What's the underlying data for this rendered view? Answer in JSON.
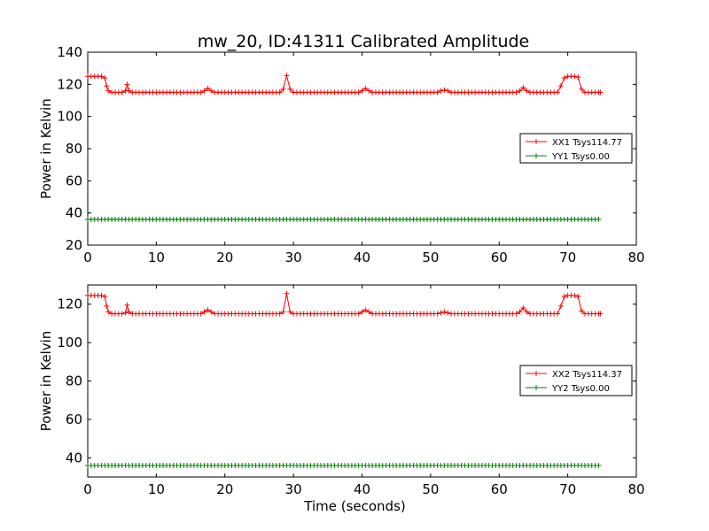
{
  "title": "mw_20, ID:41311 Calibrated Amplitude",
  "colors": {
    "xx": "#ff0000",
    "yy": "#008000",
    "frame": "#000000"
  },
  "chart_data": [
    {
      "type": "line",
      "title": "mw_20, ID:41311 Calibrated Amplitude",
      "xlabel": "",
      "ylabel": "Power in Kelvin",
      "xlim": [
        0,
        80
      ],
      "ylim": [
        20,
        140
      ],
      "xticks": [
        0,
        10,
        20,
        30,
        40,
        50,
        60,
        70,
        80
      ],
      "yticks": [
        20,
        40,
        60,
        80,
        100,
        120,
        140
      ],
      "grid": false,
      "legend_position": "center-right",
      "marker": "+",
      "series": [
        {
          "name": "XX1 Tsys114.77",
          "color": "#ff0000",
          "base": 115,
          "points": [
            [
              0,
              125
            ],
            [
              0.5,
              125
            ],
            [
              1,
              125
            ],
            [
              1.5,
              125
            ],
            [
              2,
              125
            ],
            [
              2.5,
              124
            ],
            [
              2.75,
              119
            ],
            [
              3,
              116
            ],
            [
              3.5,
              115
            ],
            [
              4,
              115
            ],
            [
              4.5,
              115
            ],
            [
              5,
              115
            ],
            [
              5.5,
              116
            ],
            [
              5.75,
              120
            ],
            [
              6,
              116
            ],
            [
              6.5,
              115
            ],
            [
              17,
              116
            ],
            [
              17.5,
              117.5
            ],
            [
              18,
              116
            ],
            [
              28.5,
              117
            ],
            [
              29,
              125.5
            ],
            [
              29.5,
              117
            ],
            [
              30,
              115
            ],
            [
              40,
              116
            ],
            [
              40.5,
              117.5
            ],
            [
              41,
              116
            ],
            [
              51.5,
              116
            ],
            [
              52,
              116.5
            ],
            [
              52.5,
              116
            ],
            [
              63,
              116
            ],
            [
              63.5,
              118
            ],
            [
              64,
              116
            ],
            [
              68.5,
              115
            ],
            [
              69,
              119
            ],
            [
              69.5,
              124
            ],
            [
              70,
              125
            ],
            [
              70.5,
              125
            ],
            [
              71,
              125
            ],
            [
              71.5,
              124.5
            ],
            [
              72,
              117
            ],
            [
              72.5,
              115
            ],
            [
              73,
              115
            ],
            [
              74,
              115
            ],
            [
              74.75,
              115
            ]
          ],
          "x_start": 0,
          "x_end": 74.75,
          "x_step": 0.5
        },
        {
          "name": "YY1 Tsys0.00",
          "color": "#008000",
          "base": 36,
          "points": [],
          "x_start": 0,
          "x_end": 74.75,
          "x_step": 0.5
        }
      ]
    },
    {
      "type": "line",
      "title": "",
      "xlabel": "Time (seconds)",
      "ylabel": "Power in Kelvin",
      "xlim": [
        0,
        80
      ],
      "ylim": [
        30,
        130
      ],
      "xticks": [
        0,
        10,
        20,
        30,
        40,
        50,
        60,
        70,
        80
      ],
      "yticks": [
        40,
        60,
        80,
        100,
        120
      ],
      "grid": false,
      "legend_position": "center-right",
      "marker": "+",
      "series": [
        {
          "name": "XX2 Tsys114.37",
          "color": "#ff0000",
          "base": 115,
          "points": [
            [
              0,
              124.5
            ],
            [
              0.5,
              124.5
            ],
            [
              1,
              124.5
            ],
            [
              1.5,
              124.5
            ],
            [
              2,
              124.5
            ],
            [
              2.5,
              124
            ],
            [
              2.75,
              119
            ],
            [
              3,
              116
            ],
            [
              3.5,
              115
            ],
            [
              4,
              115
            ],
            [
              4.5,
              115
            ],
            [
              5,
              115
            ],
            [
              5.5,
              115.5
            ],
            [
              5.75,
              119.5
            ],
            [
              6,
              116
            ],
            [
              6.5,
              115
            ],
            [
              17,
              116
            ],
            [
              17.5,
              117
            ],
            [
              18,
              116
            ],
            [
              28.5,
              116
            ],
            [
              29,
              125.5
            ],
            [
              29.5,
              116
            ],
            [
              30,
              115
            ],
            [
              40,
              116
            ],
            [
              40.5,
              117
            ],
            [
              41,
              116
            ],
            [
              51.5,
              115.5
            ],
            [
              52,
              116
            ],
            [
              52.5,
              115.5
            ],
            [
              63,
              116
            ],
            [
              63.5,
              118
            ],
            [
              64,
              116
            ],
            [
              68.5,
              115
            ],
            [
              69,
              119
            ],
            [
              69.5,
              124
            ],
            [
              70,
              124.5
            ],
            [
              70.5,
              124.5
            ],
            [
              71,
              124.5
            ],
            [
              71.5,
              124
            ],
            [
              72,
              116.5
            ],
            [
              72.5,
              115
            ],
            [
              73,
              115
            ],
            [
              74,
              115
            ],
            [
              74.75,
              115
            ]
          ],
          "x_start": 0,
          "x_end": 74.75,
          "x_step": 0.5
        },
        {
          "name": "YY2 Tsys0.00",
          "color": "#008000",
          "base": 36,
          "points": [],
          "x_start": 0,
          "x_end": 74.75,
          "x_step": 0.5
        }
      ]
    }
  ]
}
